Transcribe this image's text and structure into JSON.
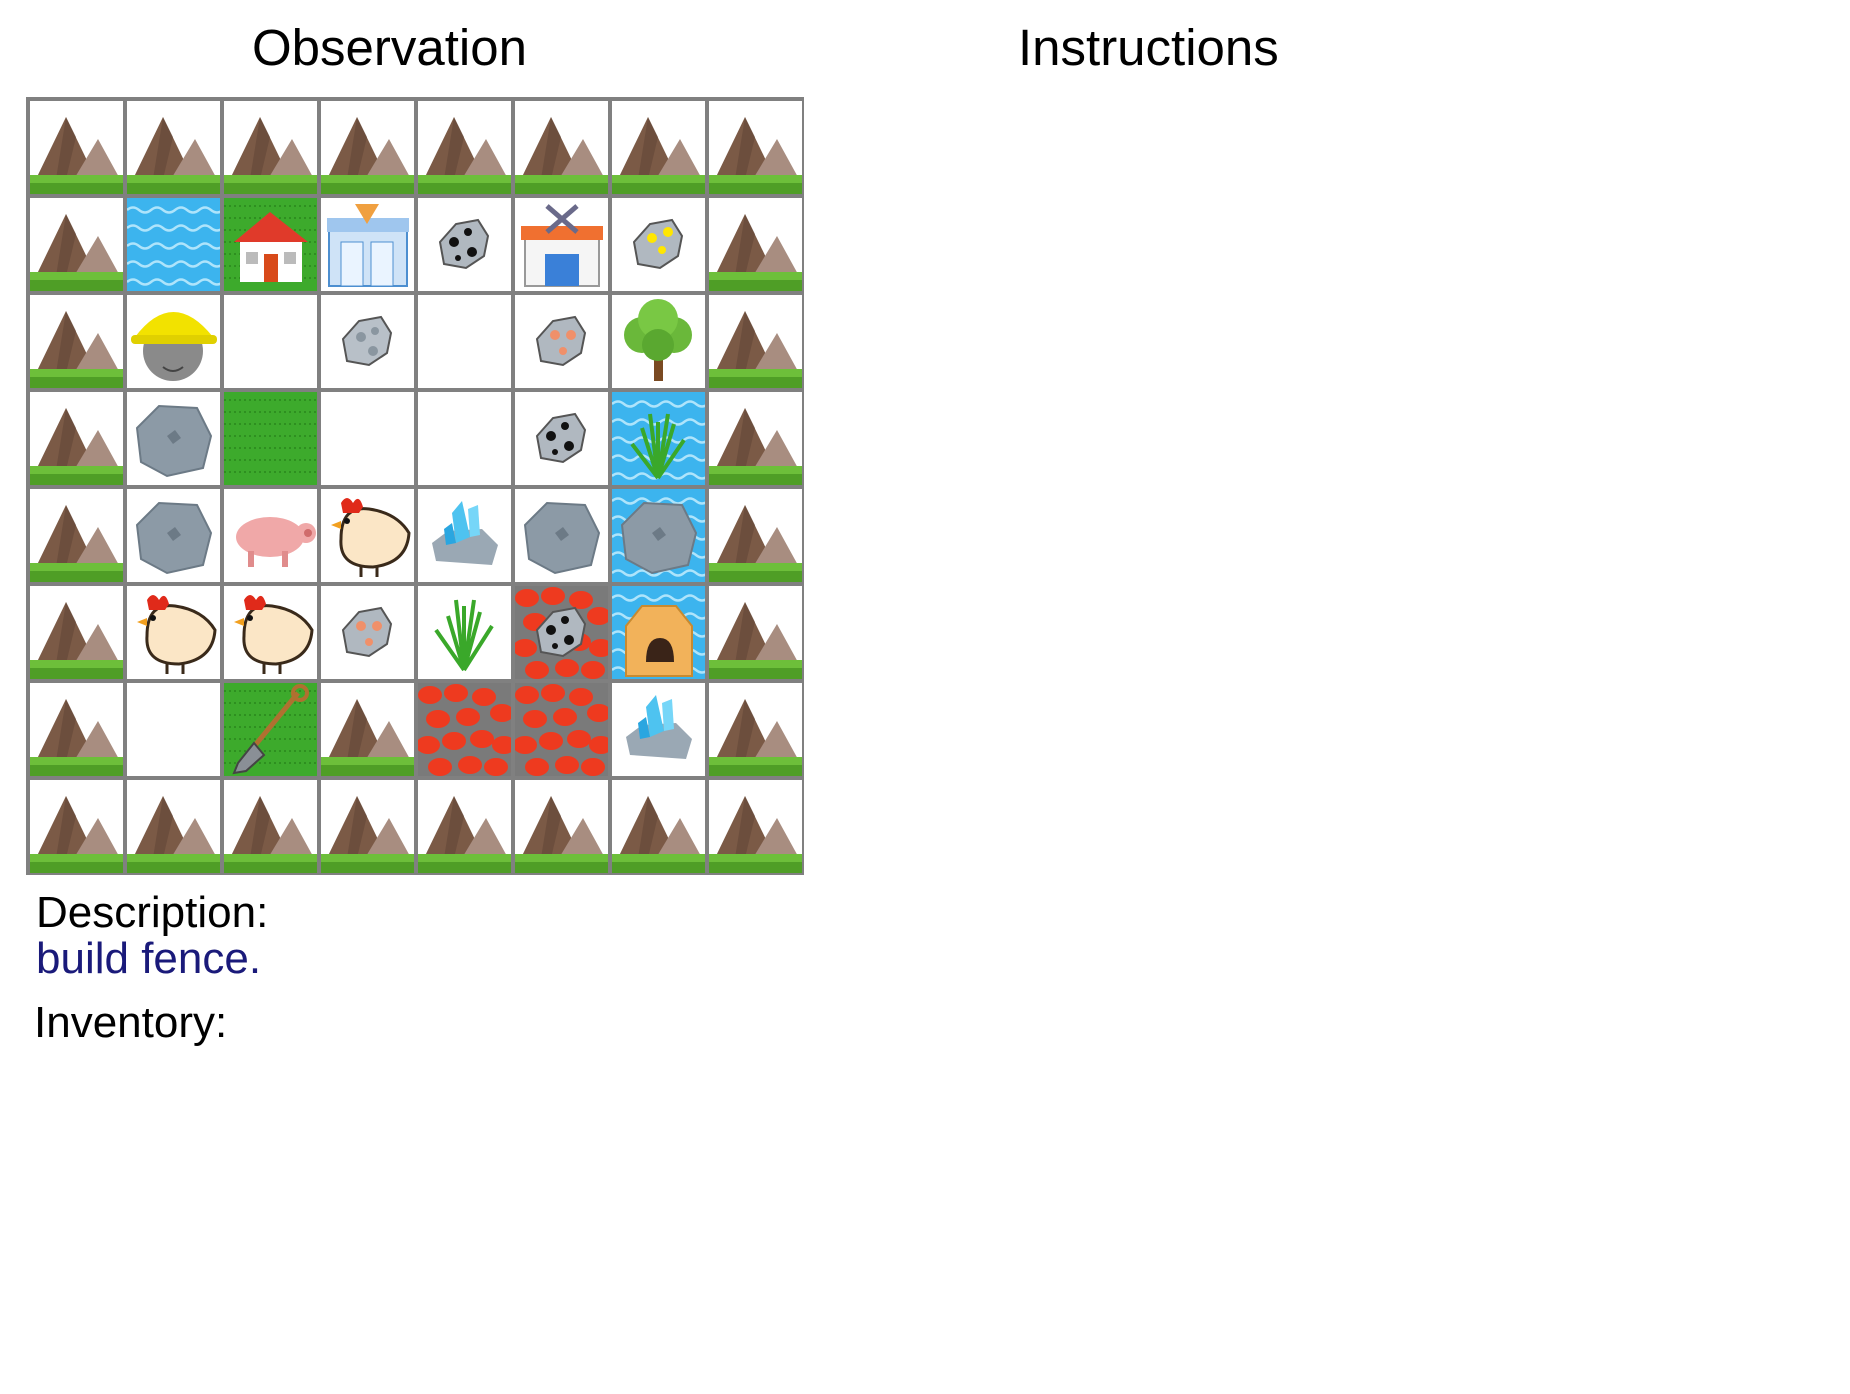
{
  "titles": {
    "observation": "Observation",
    "instructions": "Instructions"
  },
  "description": {
    "label": "Description:",
    "text": "build fence."
  },
  "inventory": {
    "label": "Inventory:",
    "items": []
  },
  "grid": [
    [
      "mountain",
      "mountain",
      "mountain",
      "mountain",
      "mountain",
      "mountain",
      "mountain",
      "mountain"
    ],
    [
      "mountain",
      "water",
      "house",
      "bank",
      "coal",
      "workshop",
      "gold",
      "mountain"
    ],
    [
      "mountain",
      "player",
      "empty",
      "iron",
      "empty",
      "copper",
      "tree",
      "mountain"
    ],
    [
      "mountain",
      "stone",
      "grass",
      "empty",
      "empty",
      "coal",
      "water-grass",
      "mountain"
    ],
    [
      "mountain",
      "stone",
      "pig",
      "chicken",
      "diamond",
      "stone",
      "water-stone",
      "mountain"
    ],
    [
      "mountain",
      "chicken",
      "chicken",
      "copper",
      "tall-grass",
      "lava-coal",
      "water-furnace",
      "mountain"
    ],
    [
      "mountain",
      "empty",
      "grass-shovel",
      "mountain",
      "lava",
      "lava",
      "diamond",
      "mountain"
    ],
    [
      "mountain",
      "mountain",
      "mountain",
      "mountain",
      "mountain",
      "mountain",
      "mountain",
      "mountain"
    ]
  ]
}
